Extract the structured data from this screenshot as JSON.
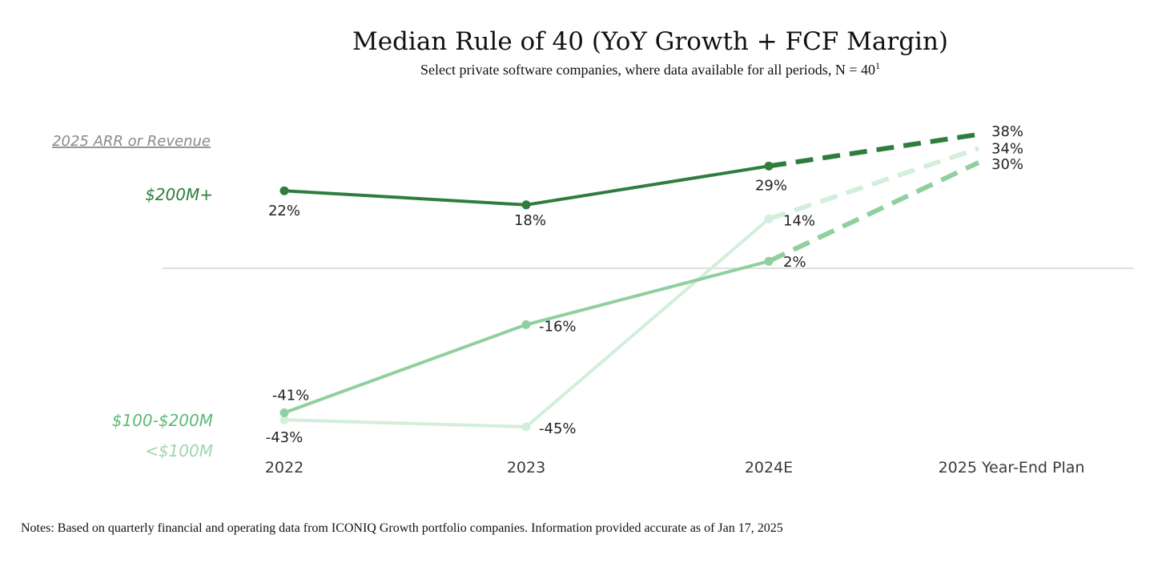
{
  "chart_data": {
    "type": "line",
    "title": "Median Rule of 40 (YoY Growth + FCF Margin)",
    "subtitle": "Select private software companies, where data available for all periods, N = 40",
    "subtitle_sup": "1",
    "legend_title": "2025 ARR or Revenue",
    "categories": [
      "2022",
      "2023",
      "2024E",
      "2025 Year-End Plan"
    ],
    "projected_from_index": 2,
    "reference_line_y": 0,
    "series": [
      {
        "name": "$200M+",
        "color": "#2e7d3e",
        "values": [
          22,
          18,
          29,
          38
        ],
        "labels": [
          "22%",
          "18%",
          "29%",
          "38%"
        ]
      },
      {
        "name": "$100-$200M",
        "color": "#8fd09f",
        "values": [
          -41,
          -16,
          2,
          30
        ],
        "labels": [
          "-41%",
          "-16%",
          "2%",
          "30%"
        ]
      },
      {
        "name": "<$100M",
        "color": "#d3eedb",
        "values": [
          -43,
          -45,
          14,
          34
        ],
        "labels": [
          "-43%",
          "-45%",
          "14%",
          "34%"
        ]
      }
    ]
  },
  "notes": "Notes: Based on quarterly financial and operating data from ICONIQ Growth portfolio companies. Information provided accurate as of Jan 17, 2025"
}
